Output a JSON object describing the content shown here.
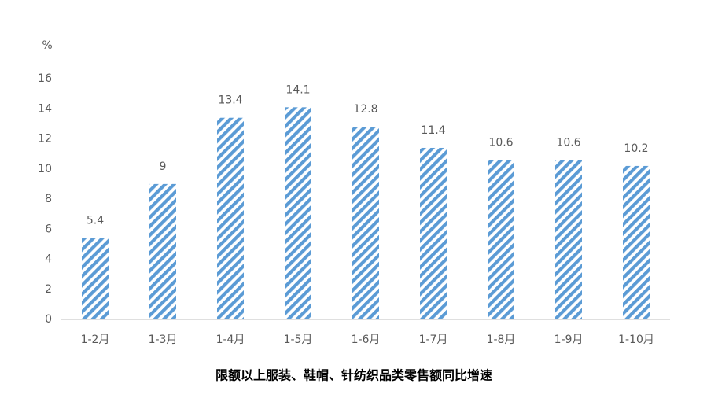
{
  "chart_data": {
    "type": "bar",
    "title": "限额以上服装、鞋帽、针纺织品类零售额同比增速",
    "y_label": "%",
    "categories": [
      "1-2月",
      "1-3月",
      "1-4月",
      "1-5月",
      "1-6月",
      "1-7月",
      "1-8月",
      "1-9月",
      "1-10月"
    ],
    "values": [
      5.4,
      9,
      13.4,
      14.1,
      12.8,
      11.4,
      10.6,
      10.6,
      10.2
    ],
    "color": "#5b9bd5",
    "ylim": [
      0,
      16
    ],
    "yticks": [
      0,
      2,
      4,
      6,
      8,
      10,
      12,
      14,
      16
    ],
    "grid": false
  }
}
